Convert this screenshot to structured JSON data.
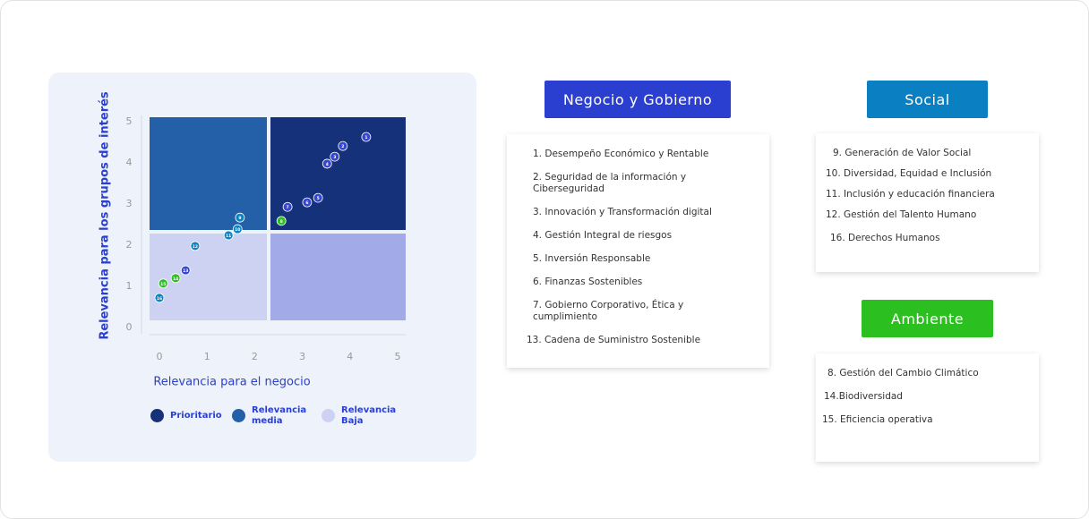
{
  "chart_data": {
    "type": "scatter",
    "xlabel": "Relevancia para el negocio",
    "ylabel": "Relevancia para los grupos de interés",
    "x": [
      4.34,
      3.85,
      3.68,
      3.52,
      3.33,
      3.1,
      2.69,
      2.56,
      1.69,
      1.64,
      1.45,
      0.75,
      0.55,
      0.34,
      0.08,
      0
    ],
    "y": [
      4.63,
      4.41,
      4.15,
      3.98,
      3.15,
      3.04,
      2.93,
      2.59,
      2.67,
      2.39,
      2.24,
      1.98,
      1.39,
      1.2,
      1.07,
      0.72
    ],
    "labels": [
      "1",
      "2",
      "3",
      "4",
      "5",
      "6",
      "7",
      "8",
      "9",
      "10",
      "11",
      "12",
      "13",
      "14",
      "15",
      "16"
    ],
    "colors": [
      "#3646d1",
      "#3646d1",
      "#3646d1",
      "#3646d1",
      "#3646d1",
      "#3646d1",
      "#3646d1",
      "#2fbe22",
      "#0b84c4",
      "#0b84c4",
      "#0b84c4",
      "#0b84c4",
      "#3646d1",
      "#2fbe22",
      "#2fbe22",
      "#0b84c4"
    ],
    "xlim": [
      0,
      5
    ],
    "ylim": [
      0,
      5
    ],
    "xticks": [
      0,
      1,
      2,
      3,
      4,
      5
    ],
    "yticks": [
      0,
      1,
      2,
      3,
      4,
      5
    ],
    "regions": [
      {
        "name": "Prioritario",
        "color": "#15317a"
      },
      {
        "name": "Relevancia media",
        "color": "#2460a8"
      },
      {
        "name": "Relevancia Baja",
        "color": "#cdd2f2"
      }
    ]
  },
  "panels": [
    {
      "title": "Negocio y Gobierno",
      "color": "#2a3fcf",
      "items": [
        "1. Desempeño Económico y Rentable",
        "2. Seguridad de la información y Ciberseguridad",
        "3. Innovación y Transformación digital",
        "4. Gestión Integral de riesgos",
        "5. Inversión Responsable",
        "6. Finanzas Sostenibles",
        "7. Gobierno Corporativo, Ética y cumplimiento",
        "13. Cadena de Suministro Sostenible"
      ]
    },
    {
      "title": "Social",
      "color": "#0a7fc2",
      "items": [
        "9. Generación de Valor Social",
        "10. Diversidad, Equidad e Inclusión",
        "11. Inclusión y educación financiera",
        "12. Gestión del Talento Humano",
        "16. Derechos Humanos"
      ]
    },
    {
      "title": "Ambiente",
      "color": "#2bbf1f",
      "items": [
        "8. Gestión del Cambio Climático",
        "14.Biodiversidad",
        "15. Eficiencia operativa"
      ]
    }
  ]
}
